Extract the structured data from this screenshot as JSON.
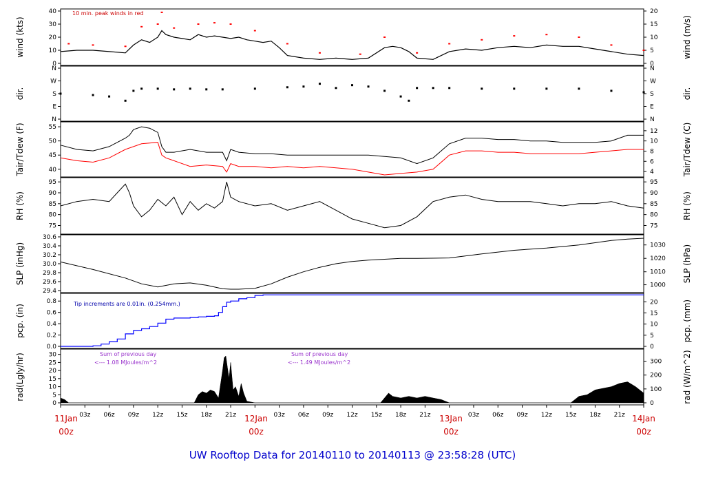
{
  "footer": {
    "title": "UW Rooftop Data for 20140110  to  20140113 @ 23:58:28  (UTC)"
  },
  "time_axis": {
    "hour_labels": [
      "03z",
      "06z",
      "09z",
      "12z",
      "15z",
      "18z",
      "21z",
      "00z",
      "03z",
      "06z",
      "09z",
      "12z",
      "15z",
      "18z",
      "21z",
      "00z",
      "03z",
      "06z",
      "09z",
      "12z",
      "15z",
      "18z",
      "21z"
    ],
    "day_labels": [
      {
        "date": "11Jan",
        "hour": "00z"
      },
      {
        "date": "12Jan",
        "hour": "00z"
      },
      {
        "date": "13Jan",
        "hour": "00z"
      },
      {
        "date": "14Jan",
        "hour": "00z"
      }
    ]
  },
  "panels": {
    "wind": {
      "left_label": "wind (kts)",
      "right_label": "wind (m/s)",
      "left_ticks": [
        "0",
        "10",
        "20",
        "30",
        "40"
      ],
      "right_ticks": [
        "0",
        "5",
        "10",
        "15",
        "20"
      ],
      "note": "10 min. peak winds in red"
    },
    "dir": {
      "left_label": "dir.",
      "right_label": "dir.",
      "left_ticks": [
        "N",
        "E",
        "S",
        "W",
        "N"
      ],
      "right_ticks": [
        "N",
        "E",
        "S",
        "W",
        "N"
      ]
    },
    "temp": {
      "left_label": "Tair/Tdew (F)",
      "right_label": "Tair/Tdew (C)",
      "left_ticks": [
        "40",
        "45",
        "50",
        "55"
      ],
      "right_ticks": [
        "4",
        "6",
        "8",
        "10",
        "12"
      ]
    },
    "rh": {
      "left_label": "RH (%)",
      "right_label": "RH (%)",
      "left_ticks": [
        "75",
        "80",
        "85",
        "90",
        "95"
      ],
      "right_ticks": [
        "75",
        "80",
        "85",
        "90",
        "95"
      ]
    },
    "slp": {
      "left_label": "SLP (inHg)",
      "right_label": "SLP (hPa)",
      "left_ticks": [
        "29.4",
        "29.6",
        "29.8",
        "30.0",
        "30.2",
        "30.4",
        "30.6"
      ],
      "right_ticks": [
        "1000",
        "1010",
        "1020",
        "1030"
      ]
    },
    "pcp": {
      "left_label": "pcp. (in)",
      "right_label": "pcp. (mm)",
      "left_ticks": [
        "0.0",
        "0.2",
        "0.4",
        "0.6",
        "0.8"
      ],
      "right_ticks": [
        "0",
        "5",
        "10",
        "15",
        "20"
      ],
      "note": "Tip increments are 0.01in. (0.254mm.)"
    },
    "rad": {
      "left_label": "rad(Lgly/hr)",
      "right_label": "rad (W/m^2)",
      "left_ticks": [
        "0",
        "5",
        "10",
        "15",
        "20",
        "25",
        "30"
      ],
      "right_ticks": [
        "0",
        "100",
        "200",
        "300"
      ],
      "notes": [
        {
          "line1": "Sum of previous day",
          "line2": "<--- 1.08 MJoules/m^2"
        },
        {
          "line1": "Sum of previous day",
          "line2": "<--- 1.49 MJoules/m^2"
        }
      ]
    }
  },
  "colors": {
    "air": "#000000",
    "dew": "#ff0000",
    "gust": "#ff0000",
    "pcp": "#0000ff",
    "dayLabel": "#cc0000",
    "footer": "#0000cc"
  },
  "chart_data": [
    {
      "type": "line",
      "name": "wind",
      "title": "",
      "ylabel": "wind (kts)",
      "y2label": "wind (m/s)",
      "ylim": [
        0,
        40
      ],
      "x_unit": "hours since 11Jan 00z",
      "xlim": [
        0,
        72
      ],
      "series": [
        {
          "name": "wind speed",
          "x": [
            0,
            2,
            4,
            6,
            8,
            9,
            10,
            11,
            12,
            12.5,
            13,
            14,
            15,
            16,
            17,
            18,
            19,
            20,
            21,
            22,
            23,
            24,
            25,
            26,
            27,
            28,
            30,
            32,
            34,
            36,
            38,
            40,
            41,
            42,
            43,
            44,
            46,
            48,
            50,
            52,
            54,
            56,
            58,
            60,
            62,
            64,
            66,
            68,
            70,
            72
          ],
          "y": [
            9,
            10,
            10,
            9,
            8,
            14,
            18,
            16,
            20,
            25,
            22,
            20,
            19,
            18,
            22,
            20,
            21,
            20,
            19,
            20,
            18,
            17,
            16,
            17,
            12,
            6,
            4,
            3,
            4,
            3,
            4,
            12,
            13,
            12,
            9,
            4,
            3,
            9,
            11,
            10,
            12,
            13,
            12,
            14,
            13,
            13,
            11,
            9,
            7,
            6
          ]
        },
        {
          "name": "10 min. peak winds",
          "x": [
            1,
            4,
            8,
            10,
            12,
            12.5,
            14,
            17,
            19,
            21,
            24,
            28,
            32,
            37,
            40,
            44,
            48,
            52,
            56,
            60,
            64,
            68,
            72
          ],
          "y": [
            15,
            14,
            13,
            28,
            30,
            39,
            27,
            30,
            31,
            30,
            25,
            15,
            8,
            7,
            20,
            8,
            15,
            18,
            21,
            22,
            20,
            14,
            10
          ]
        }
      ]
    },
    {
      "type": "scatter",
      "name": "wind direction",
      "ylabel": "dir.",
      "y_categories": [
        "N",
        "E",
        "S",
        "W",
        "N"
      ],
      "ylim": [
        0,
        360
      ],
      "xlim": [
        0,
        72
      ],
      "series": [
        {
          "name": "direction",
          "x": [
            0,
            4,
            6,
            8,
            9,
            10,
            12,
            14,
            16,
            18,
            20,
            24,
            28,
            30,
            32,
            34,
            36,
            38,
            40,
            42,
            43,
            44,
            46,
            48,
            52,
            56,
            60,
            64,
            68,
            72
          ],
          "y": [
            180,
            170,
            160,
            130,
            200,
            215,
            215,
            210,
            215,
            210,
            210,
            215,
            225,
            230,
            250,
            220,
            240,
            230,
            200,
            160,
            130,
            220,
            220,
            220,
            215,
            215,
            215,
            215,
            200,
            190
          ]
        }
      ]
    },
    {
      "type": "line",
      "name": "temperature",
      "ylabel": "Tair/Tdew (F)",
      "y2label": "Tair/Tdew (C)",
      "ylim": [
        38,
        56
      ],
      "xlim": [
        0,
        72
      ],
      "series": [
        {
          "name": "Tair",
          "x": [
            0,
            2,
            4,
            6,
            8,
            8.5,
            9,
            10,
            11,
            12,
            12.5,
            13,
            14,
            16,
            18,
            20,
            20.5,
            21,
            22,
            24,
            26,
            28,
            30,
            32,
            34,
            36,
            38,
            40,
            42,
            44,
            46,
            48,
            50,
            52,
            54,
            56,
            58,
            60,
            62,
            64,
            66,
            68,
            70,
            72
          ],
          "y": [
            48.5,
            47,
            46.5,
            48,
            51,
            52,
            54,
            55,
            54.5,
            53,
            48,
            46,
            46,
            47,
            46,
            46,
            43,
            47,
            46,
            45.5,
            45.5,
            45,
            45,
            45,
            45,
            45,
            45,
            44.5,
            44,
            42,
            44,
            49,
            51,
            51,
            50.5,
            50.5,
            50,
            50,
            49.5,
            49.5,
            49.5,
            50,
            52,
            52
          ]
        },
        {
          "name": "Tdew",
          "x": [
            0,
            2,
            4,
            6,
            8,
            9,
            10,
            12,
            12.5,
            13,
            14,
            16,
            18,
            20,
            20.5,
            21,
            22,
            24,
            26,
            28,
            30,
            32,
            34,
            36,
            38,
            40,
            42,
            44,
            46,
            48,
            50,
            52,
            54,
            56,
            58,
            60,
            62,
            64,
            66,
            68,
            70,
            72
          ],
          "y": [
            44,
            43,
            42.5,
            44,
            47,
            48,
            49,
            49.5,
            45,
            44,
            43,
            41,
            41.5,
            41,
            39,
            42,
            41,
            41,
            40.5,
            41,
            40.5,
            41,
            40.5,
            40,
            39,
            38,
            38.5,
            39,
            40,
            45,
            46.5,
            46.5,
            46,
            46,
            45.5,
            45.5,
            45.5,
            45.5,
            46,
            46.5,
            47,
            47
          ]
        }
      ]
    },
    {
      "type": "line",
      "name": "relative humidity",
      "ylabel": "RH (%)",
      "ylim": [
        72,
        96
      ],
      "xlim": [
        0,
        72
      ],
      "series": [
        {
          "name": "RH",
          "x": [
            0,
            2,
            4,
            6,
            7,
            8,
            8.5,
            9,
            10,
            11,
            12,
            13,
            14,
            15,
            16,
            17,
            18,
            19,
            20,
            20.5,
            21,
            22,
            24,
            26,
            28,
            30,
            32,
            34,
            36,
            38,
            40,
            42,
            44,
            46,
            48,
            50,
            52,
            54,
            56,
            58,
            60,
            62,
            64,
            66,
            68,
            70,
            72
          ],
          "y": [
            84,
            86,
            87,
            86,
            90,
            94,
            90,
            84,
            79,
            82,
            87,
            84,
            88,
            80,
            86,
            82,
            85,
            83,
            86,
            95,
            88,
            86,
            84,
            85,
            82,
            84,
            86,
            82,
            78,
            76,
            74,
            75,
            79,
            86,
            88,
            89,
            87,
            86,
            86,
            86,
            85,
            84,
            85,
            85,
            86,
            84,
            83
          ]
        }
      ]
    },
    {
      "type": "line",
      "name": "sea level pressure",
      "ylabel": "SLP (inHg)",
      "y2label": "SLP (hPa)",
      "ylim": [
        29.4,
        30.6
      ],
      "xlim": [
        0,
        72
      ],
      "series": [
        {
          "name": "SLP",
          "x": [
            0,
            4,
            8,
            10,
            12,
            14,
            16,
            18,
            20,
            21,
            22,
            24,
            26,
            28,
            30,
            32,
            34,
            36,
            38,
            40,
            42,
            44,
            48,
            52,
            56,
            60,
            64,
            68,
            70,
            72
          ],
          "y": [
            30.04,
            29.87,
            29.68,
            29.55,
            29.48,
            29.55,
            29.57,
            29.52,
            29.44,
            29.43,
            29.43,
            29.45,
            29.55,
            29.7,
            29.82,
            29.92,
            30.0,
            30.05,
            30.08,
            30.1,
            30.12,
            30.12,
            30.13,
            30.22,
            30.3,
            30.35,
            30.42,
            30.52,
            30.55,
            30.57
          ]
        }
      ]
    },
    {
      "type": "area",
      "name": "precipitation",
      "ylabel": "pcp. (in)",
      "y2label": "pcp. (mm)",
      "ylim": [
        0,
        0.9
      ],
      "xlim": [
        0,
        72
      ],
      "series": [
        {
          "name": "accumulated pcp",
          "x": [
            0,
            2,
            4,
            5,
            6,
            7,
            8,
            9,
            10,
            11,
            12,
            13,
            14,
            15,
            16,
            17,
            18,
            19,
            19.5,
            20,
            20.5,
            21,
            22,
            23,
            24,
            25,
            72
          ],
          "y": [
            0,
            0,
            0.01,
            0.04,
            0.08,
            0.13,
            0.22,
            0.28,
            0.31,
            0.35,
            0.41,
            0.48,
            0.5,
            0.5,
            0.51,
            0.52,
            0.53,
            0.54,
            0.6,
            0.7,
            0.78,
            0.8,
            0.84,
            0.86,
            0.9,
            0.91,
            0.91
          ]
        }
      ]
    },
    {
      "type": "area",
      "name": "solar radiation",
      "ylabel": "rad(Lgly/hr)",
      "y2label": "rad (W/m^2)",
      "ylim": [
        0,
        32
      ],
      "xlim": [
        0,
        72
      ],
      "series": [
        {
          "name": "radiation",
          "x": [
            0,
            0.5,
            1,
            16.5,
            17,
            17.5,
            18,
            18.5,
            19,
            19.5,
            20,
            20.2,
            20.4,
            20.6,
            20.8,
            21,
            21.3,
            21.6,
            22,
            22.3,
            22.6,
            23,
            24,
            39.5,
            40.5,
            41,
            42,
            43,
            44,
            45,
            46,
            47,
            48,
            63,
            64,
            65,
            66,
            67,
            68,
            69,
            70,
            71,
            72
          ],
          "y": [
            3,
            2,
            0,
            0,
            5,
            7,
            6,
            8,
            7,
            3,
            20,
            28,
            29,
            22,
            15,
            25,
            8,
            10,
            4,
            12,
            6,
            1,
            0,
            0,
            6,
            4,
            3,
            4,
            3,
            4,
            3,
            2,
            0,
            0,
            4,
            5,
            8,
            9,
            10,
            12,
            13,
            10,
            6
          ]
        }
      ]
    }
  ]
}
